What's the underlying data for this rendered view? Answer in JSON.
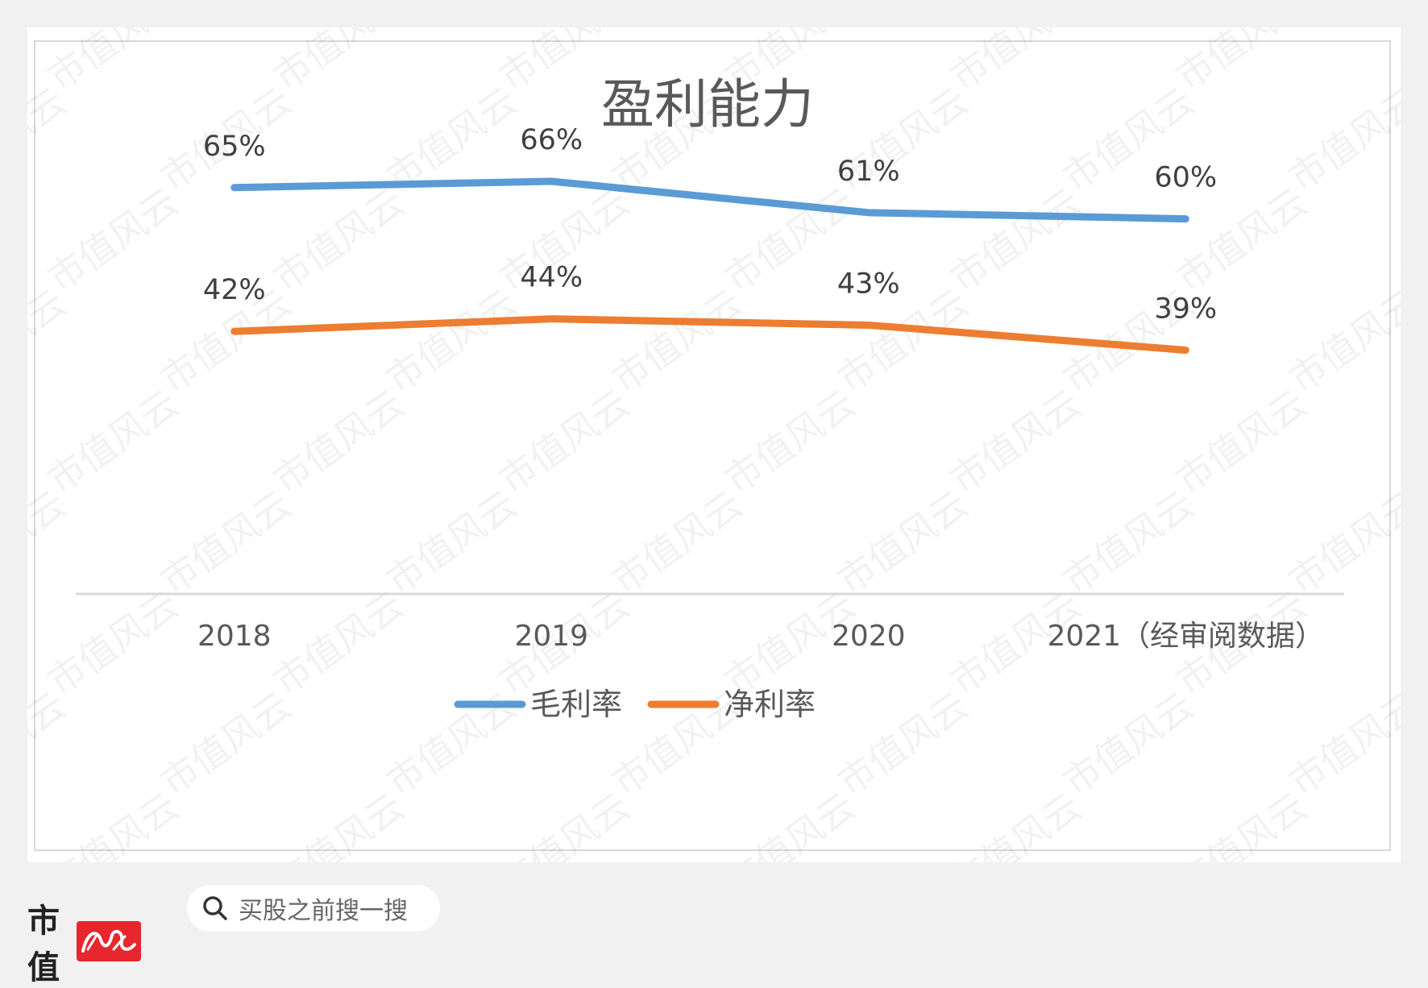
{
  "chart_data": {
    "type": "line",
    "title": "盈利能力",
    "categories": [
      "2018",
      "2019",
      "2020",
      "2021（经审阅数据）"
    ],
    "series": [
      {
        "name": "毛利率",
        "values": [
          65,
          66,
          61,
          60
        ],
        "labels": [
          "65%",
          "66%",
          "61%",
          "60%"
        ],
        "color": "#5b9bd5"
      },
      {
        "name": "净利率",
        "values": [
          42,
          44,
          43,
          39
        ],
        "labels": [
          "42%",
          "44%",
          "43%",
          "39%"
        ],
        "color": "#ed7d31"
      }
    ],
    "ylim": [
      0,
      70
    ],
    "grid": false,
    "legend": "bottom"
  },
  "watermark": "市值风云",
  "footer": {
    "brand": "市值",
    "brand_logo": "风云",
    "search_placeholder": "买股之前搜一搜"
  }
}
